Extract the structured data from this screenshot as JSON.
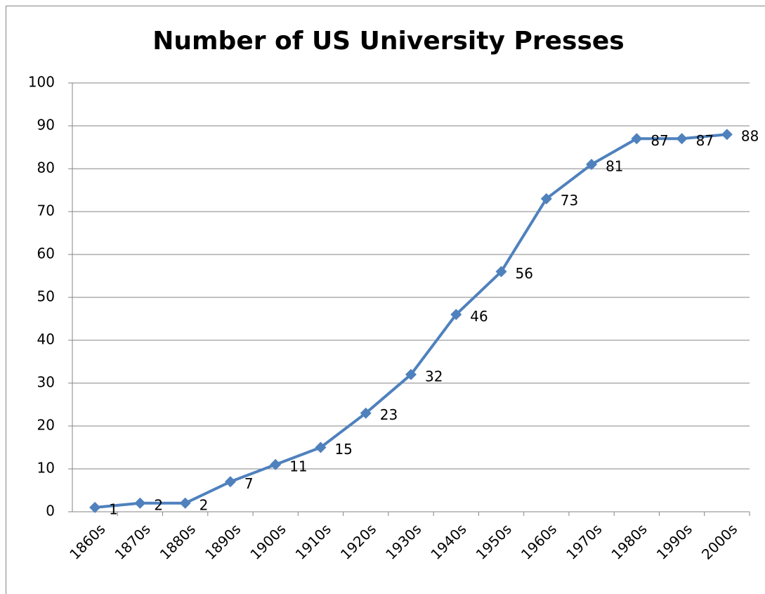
{
  "chart_data": {
    "type": "line",
    "title": "Number of US University Presses",
    "categories": [
      "1860s",
      "1870s",
      "1880s",
      "1890s",
      "1900s",
      "1910s",
      "1920s",
      "1930s",
      "1940s",
      "1950s",
      "1960s",
      "1970s",
      "1980s",
      "1990s",
      "2000s"
    ],
    "values": [
      1,
      2,
      2,
      7,
      11,
      15,
      23,
      32,
      46,
      56,
      73,
      81,
      87,
      87,
      88
    ],
    "color": "#4f81bd",
    "ylim": [
      0,
      100
    ],
    "yticks": [
      0,
      10,
      20,
      30,
      40,
      50,
      60,
      70,
      80,
      90,
      100
    ],
    "grid": true
  }
}
